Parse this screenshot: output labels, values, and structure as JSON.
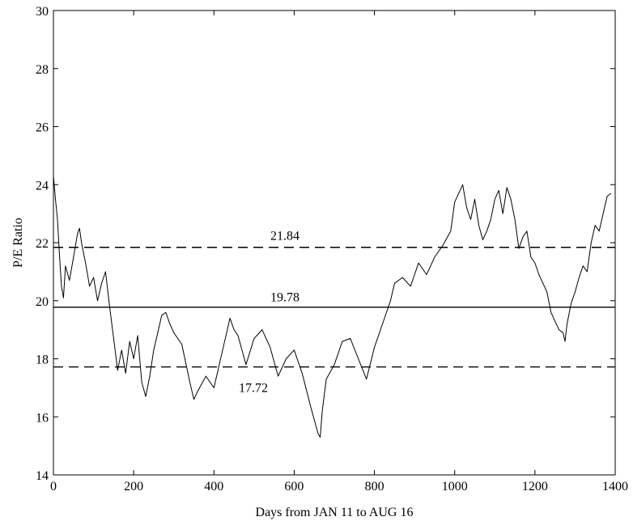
{
  "chart_data": {
    "type": "line",
    "title": "",
    "xlabel": "Days from JAN 11 to AUG 16",
    "ylabel": "P/E Ratio",
    "xlim": [
      0,
      1400
    ],
    "ylim": [
      14,
      30
    ],
    "grid": false,
    "x_ticks": [
      0,
      200,
      400,
      600,
      800,
      1000,
      1200,
      1400
    ],
    "y_ticks": [
      14,
      16,
      18,
      20,
      22,
      24,
      26,
      28,
      30
    ],
    "series": [
      {
        "name": "",
        "x": [
          0,
          5,
          10,
          15,
          20,
          25,
          30,
          40,
          50,
          60,
          65,
          70,
          80,
          90,
          100,
          110,
          120,
          130,
          140,
          150,
          160,
          170,
          180,
          190,
          200,
          210,
          220,
          230,
          240,
          250,
          260,
          270,
          280,
          290,
          300,
          320,
          340,
          350,
          360,
          380,
          400,
          420,
          440,
          450,
          460,
          480,
          500,
          520,
          540,
          560,
          580,
          600,
          620,
          640,
          660,
          665,
          670,
          680,
          700,
          720,
          740,
          760,
          780,
          800,
          820,
          840,
          850,
          870,
          890,
          910,
          930,
          950,
          970,
          990,
          1000,
          1020,
          1030,
          1040,
          1050,
          1060,
          1070,
          1080,
          1090,
          1100,
          1110,
          1120,
          1130,
          1140,
          1150,
          1160,
          1170,
          1180,
          1190,
          1200,
          1210,
          1220,
          1230,
          1240,
          1250,
          1260,
          1270,
          1275,
          1280,
          1290,
          1300,
          1310,
          1320,
          1330,
          1340,
          1350,
          1360,
          1370,
          1380,
          1390
        ],
        "y": [
          24.3,
          23.5,
          22.8,
          21.6,
          20.5,
          20.1,
          21.2,
          20.7,
          21.5,
          22.3,
          22.5,
          22.0,
          21.3,
          20.5,
          20.8,
          20.0,
          20.6,
          21.0,
          19.8,
          18.7,
          17.6,
          18.3,
          17.5,
          18.6,
          18.0,
          18.8,
          17.2,
          16.7,
          17.4,
          18.3,
          18.9,
          19.5,
          19.6,
          19.2,
          18.9,
          18.5,
          17.2,
          16.6,
          16.9,
          17.4,
          17.0,
          18.2,
          19.4,
          19.0,
          18.8,
          17.8,
          18.7,
          19.0,
          18.4,
          17.4,
          18.0,
          18.3,
          17.5,
          16.4,
          15.4,
          15.3,
          16.2,
          17.3,
          17.8,
          18.6,
          18.7,
          18.0,
          17.3,
          18.4,
          19.2,
          20.0,
          20.6,
          20.8,
          20.5,
          21.3,
          20.9,
          21.5,
          21.9,
          22.4,
          23.4,
          24.0,
          23.2,
          22.8,
          23.5,
          22.6,
          22.1,
          22.4,
          22.8,
          23.5,
          23.8,
          23.0,
          23.9,
          23.5,
          22.8,
          21.8,
          22.2,
          22.4,
          21.5,
          21.3,
          20.9,
          20.6,
          20.3,
          19.6,
          19.3,
          19.0,
          18.9,
          18.6,
          19.2,
          19.9,
          20.3,
          20.8,
          21.2,
          21.0,
          22.0,
          22.6,
          22.4,
          23.0,
          23.6,
          23.7
        ]
      }
    ],
    "reference_lines": [
      {
        "value": 21.84,
        "label": "21.84",
        "style": "dashed"
      },
      {
        "value": 19.78,
        "label": "19.78",
        "style": "solid"
      },
      {
        "value": 17.72,
        "label": "17.72",
        "style": "dashed"
      }
    ]
  }
}
